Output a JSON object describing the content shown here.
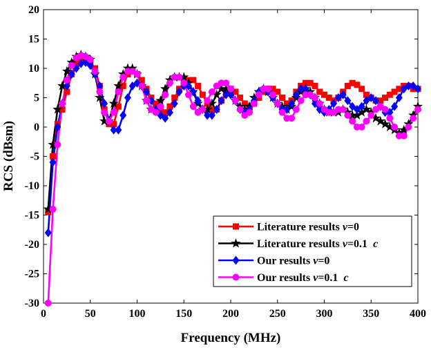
{
  "chart_data": {
    "type": "line",
    "title": "",
    "xlabel": "Frequency (MHz)",
    "ylabel": "RCS (dBsm)",
    "xlim": [
      0,
      400
    ],
    "ylim": [
      -30,
      20
    ],
    "xticks": [
      0,
      50,
      100,
      150,
      200,
      250,
      300,
      350,
      400
    ],
    "yticks": [
      -30,
      -25,
      -20,
      -15,
      -10,
      -5,
      0,
      5,
      10,
      15,
      20
    ],
    "grid": false,
    "legend_position": "bottom-right",
    "series": [
      {
        "name": "Literature results v=0",
        "legend_prefix": "Literature results ",
        "legend_suffix": "=0",
        "color": "#ff0000",
        "marker": "square",
        "x": [
          5,
          10,
          15,
          20,
          25,
          30,
          35,
          40,
          45,
          50,
          55,
          60,
          65,
          70,
          75,
          80,
          85,
          90,
          95,
          100,
          105,
          110,
          115,
          120,
          125,
          130,
          135,
          140,
          145,
          150,
          155,
          160,
          165,
          170,
          175,
          180,
          185,
          190,
          195,
          200,
          205,
          210,
          215,
          220,
          225,
          230,
          235,
          240,
          245,
          250,
          255,
          260,
          265,
          270,
          275,
          280,
          285,
          290,
          295,
          300,
          305,
          310,
          315,
          320,
          325,
          330,
          335,
          340,
          345,
          350,
          355,
          360,
          365,
          370,
          375,
          380,
          385,
          390,
          395,
          400
        ],
        "y": [
          -14.5,
          -5,
          0.5,
          3,
          6,
          9,
          11,
          11.8,
          11.5,
          11,
          10,
          7,
          3,
          0.5,
          0.5,
          3.5,
          7,
          9,
          9.5,
          9,
          8,
          6.5,
          5,
          4,
          3,
          2.5,
          3.5,
          5,
          6.5,
          7.5,
          8,
          8,
          7,
          5.5,
          4,
          3,
          3,
          4.5,
          6,
          6.5,
          6,
          5,
          4,
          3.5,
          4,
          5,
          6,
          6.5,
          6.5,
          6,
          5,
          4,
          4.5,
          6,
          7,
          7.5,
          7.5,
          7,
          6,
          5.5,
          5,
          4.5,
          5,
          6,
          7,
          7.5,
          7.2,
          6.5,
          5.5,
          5,
          4.5,
          4.5,
          5,
          5.5,
          6,
          6.5,
          7,
          7,
          6.5,
          6.5
        ]
      },
      {
        "name": "Literature results v=0.1 c",
        "legend_prefix": "Literature results ",
        "legend_suffix": "=0.1 ",
        "legend_tail": "c",
        "color": "#000000",
        "marker": "star",
        "x": [
          5,
          10,
          15,
          20,
          25,
          30,
          35,
          40,
          45,
          50,
          55,
          60,
          65,
          70,
          75,
          80,
          85,
          90,
          95,
          100,
          105,
          110,
          115,
          120,
          125,
          130,
          135,
          140,
          145,
          150,
          155,
          160,
          165,
          170,
          175,
          180,
          185,
          190,
          195,
          200,
          205,
          210,
          215,
          220,
          225,
          230,
          235,
          240,
          245,
          250,
          255,
          260,
          265,
          270,
          275,
          280,
          285,
          290,
          295,
          300,
          305,
          310,
          315,
          320,
          325,
          330,
          335,
          340,
          345,
          350,
          355,
          360,
          365,
          370,
          375,
          380,
          385,
          390,
          395,
          400
        ],
        "y": [
          -14,
          -3,
          3,
          7,
          9.5,
          11,
          12,
          12.3,
          12,
          11.5,
          9,
          5,
          1,
          1,
          4,
          7,
          9,
          10,
          10,
          9,
          7,
          4.5,
          3,
          3,
          4.5,
          6.5,
          8,
          8.5,
          8.5,
          8.5,
          7.5,
          6,
          4,
          3,
          3,
          4,
          5.5,
          6.5,
          6.5,
          6,
          4.5,
          3.5,
          3,
          3.5,
          5,
          6,
          6.5,
          6,
          5,
          4,
          3.5,
          3,
          3.5,
          5,
          6,
          6.5,
          6,
          5,
          4,
          3,
          2.5,
          2.5,
          2.5,
          3,
          2.5,
          2,
          2,
          2.5,
          3,
          2.5,
          1.5,
          1,
          0.5,
          0,
          -0.5,
          -1,
          -0.5,
          0.5,
          2,
          3.5
        ]
      },
      {
        "name": "Our results v=0",
        "legend_prefix": "Our results ",
        "legend_suffix": "=0",
        "color": "#0000ff",
        "marker": "diamond",
        "x": [
          5,
          10,
          15,
          20,
          25,
          30,
          35,
          40,
          45,
          50,
          55,
          60,
          65,
          70,
          75,
          80,
          85,
          90,
          95,
          100,
          105,
          110,
          115,
          120,
          125,
          130,
          135,
          140,
          145,
          150,
          155,
          160,
          165,
          170,
          175,
          180,
          185,
          190,
          195,
          200,
          205,
          210,
          215,
          220,
          225,
          230,
          235,
          240,
          245,
          250,
          255,
          260,
          265,
          270,
          275,
          280,
          285,
          290,
          295,
          300,
          305,
          310,
          315,
          320,
          325,
          330,
          335,
          340,
          345,
          350,
          355,
          360,
          365,
          370,
          375,
          380,
          385,
          390,
          395,
          400
        ],
        "y": [
          -18,
          -6,
          0,
          4,
          7,
          9,
          10,
          10.8,
          11,
          10.5,
          9,
          7,
          4,
          1,
          -0.5,
          -0.5,
          2,
          5,
          7,
          7.5,
          7,
          6,
          4.5,
          3,
          2,
          1.5,
          2.5,
          4,
          6,
          7,
          7,
          6,
          4.5,
          3,
          2,
          2,
          3,
          4.5,
          5.5,
          5.5,
          4.5,
          3,
          2.5,
          3,
          4.5,
          6,
          6.5,
          6,
          5,
          4,
          3,
          3,
          4,
          5.5,
          6.5,
          6.5,
          5.5,
          4,
          3,
          2.5,
          3,
          4,
          5,
          5.5,
          4.5,
          3.5,
          3,
          3.5,
          4.5,
          5,
          4.5,
          3.5,
          2.5,
          2.5,
          3.5,
          5,
          6.5,
          7,
          7,
          6.5
        ]
      },
      {
        "name": "Our results v=0.1 c",
        "legend_prefix": "Our results ",
        "legend_suffix": "=0.1 ",
        "legend_tail": "c",
        "color": "#ff00ff",
        "marker": "circle",
        "x": [
          5,
          10,
          15,
          20,
          25,
          30,
          35,
          40,
          45,
          50,
          55,
          60,
          65,
          70,
          75,
          80,
          85,
          90,
          95,
          100,
          105,
          110,
          115,
          120,
          125,
          130,
          135,
          140,
          145,
          150,
          155,
          160,
          165,
          170,
          175,
          180,
          185,
          190,
          195,
          200,
          205,
          210,
          215,
          220,
          225,
          230,
          235,
          240,
          245,
          250,
          255,
          260,
          265,
          270,
          275,
          280,
          285,
          290,
          295,
          300,
          305,
          310,
          315,
          320,
          325,
          330,
          335,
          340,
          345,
          350,
          355,
          360,
          365,
          370,
          375,
          380,
          385,
          390,
          395,
          400
        ],
        "y": [
          -30,
          -14,
          -3,
          4,
          8,
          10.5,
          11.8,
          12.2,
          12,
          11.5,
          9.5,
          6,
          2.5,
          1,
          2.5,
          6,
          8.5,
          9.5,
          9.5,
          9,
          7,
          4.5,
          3,
          2.5,
          3.5,
          5.5,
          7.5,
          8.5,
          8.5,
          7.5,
          5.5,
          3.5,
          2.5,
          3,
          4.5,
          6,
          7,
          7.5,
          7.5,
          6.5,
          4.5,
          3,
          2,
          2.5,
          4,
          5.5,
          6.5,
          6.5,
          5.5,
          4,
          2.5,
          1.5,
          1.5,
          3,
          4.5,
          5.5,
          5.5,
          5,
          4,
          3,
          2.5,
          2.5,
          3,
          3,
          2,
          1,
          0,
          0,
          1,
          2,
          3,
          3.5,
          3,
          1.5,
          0,
          -1.5,
          -1.5,
          0,
          1.5,
          3
        ]
      }
    ]
  }
}
